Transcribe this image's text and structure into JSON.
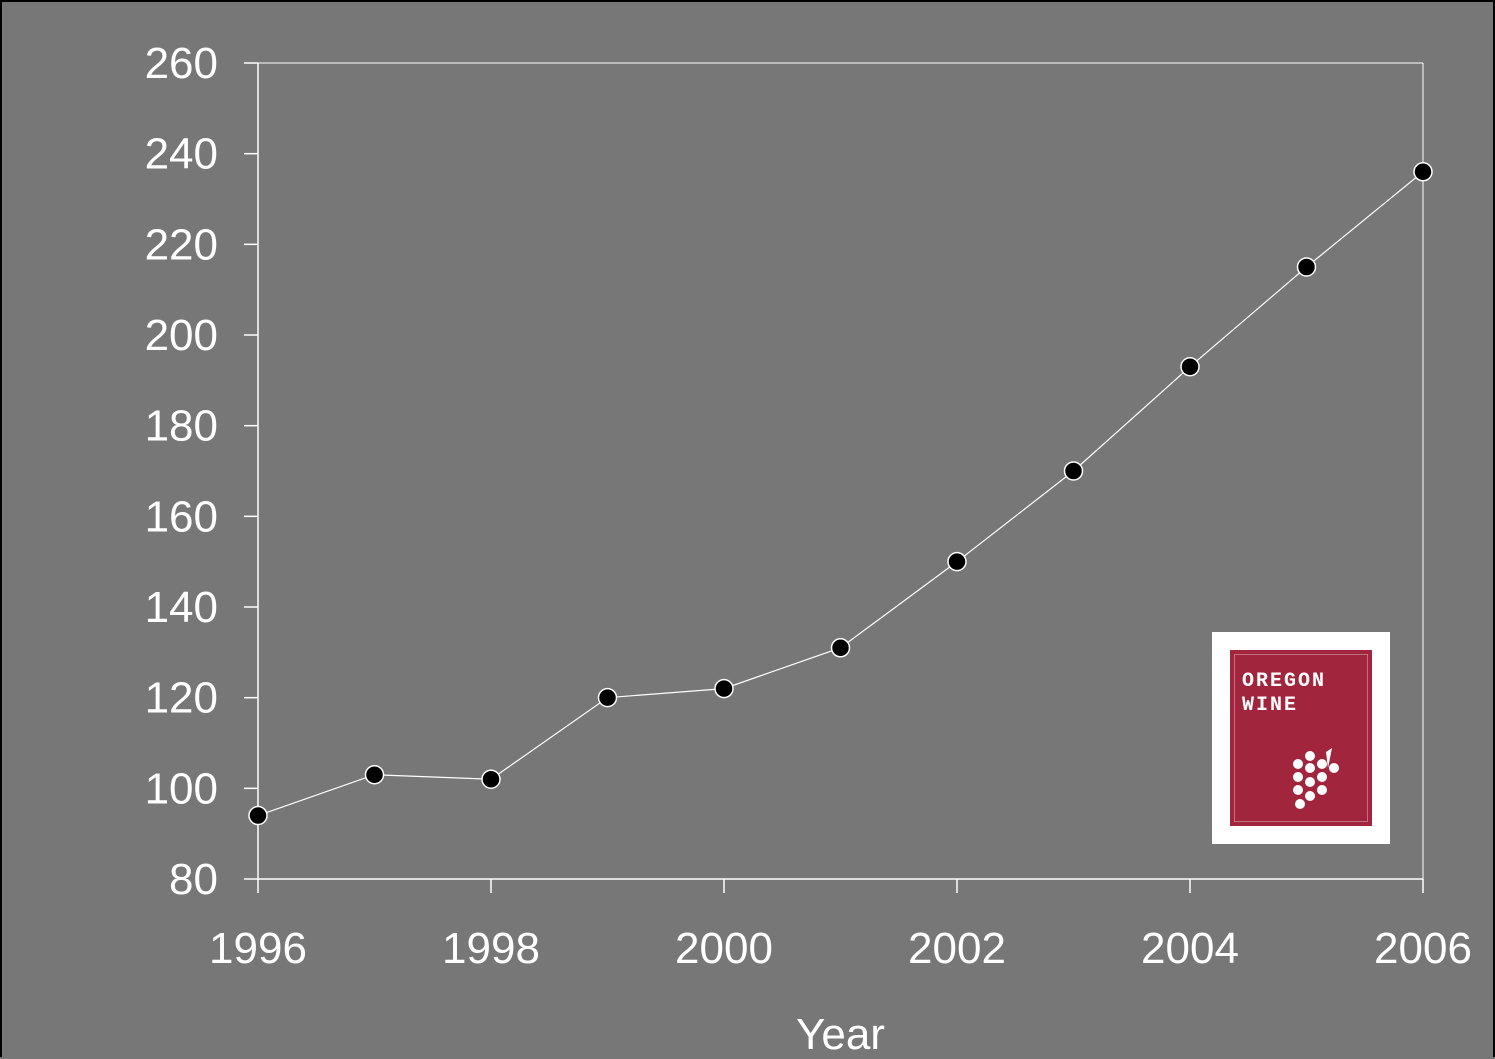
{
  "chart_data": {
    "type": "line",
    "title": "",
    "xlabel": "Year",
    "ylabel": "",
    "x": [
      1996,
      1997,
      1998,
      1999,
      2000,
      2001,
      2002,
      2003,
      2004,
      2005,
      2006
    ],
    "series": [
      {
        "values": [
          94,
          103,
          102,
          120,
          122,
          131,
          150,
          170,
          193,
          215,
          236
        ]
      }
    ],
    "xlim": [
      1996,
      2006
    ],
    "ylim": [
      80,
      260
    ],
    "x_ticks": [
      "1996",
      "1998",
      "2000",
      "2002",
      "2004",
      "2006"
    ],
    "y_ticks": [
      "80",
      "100",
      "120",
      "140",
      "160",
      "180",
      "200",
      "220",
      "240",
      "260"
    ],
    "grid": false,
    "legend": "none",
    "colors": {
      "background": "#777777",
      "line": "#ffffff",
      "marker": "#000000",
      "axis": "#ffffff"
    }
  },
  "logo": {
    "line1": "OREGON",
    "line2": "WINE",
    "icon": "grapes-icon",
    "color": "#a1263d"
  }
}
